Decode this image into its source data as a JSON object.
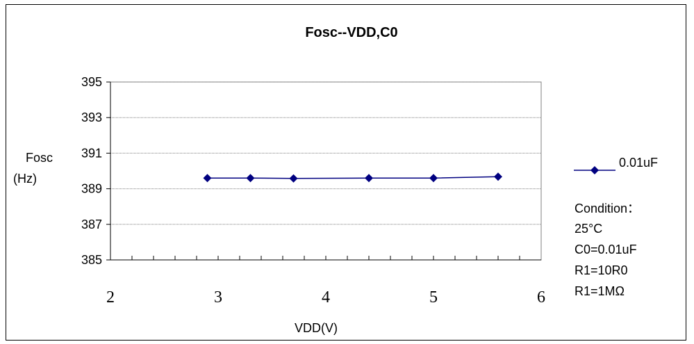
{
  "chart_data": {
    "type": "line",
    "title": "Fosc--VDD,C0",
    "xlabel": "VDD(V)",
    "ylabel_line1": "Fosc",
    "ylabel_line2": "(Hz)",
    "xlim": [
      2,
      6
    ],
    "ylim": [
      385,
      395
    ],
    "x_ticks": [
      2,
      3,
      4,
      5,
      6
    ],
    "x_minor_step": 0.2,
    "y_ticks": [
      385,
      387,
      389,
      391,
      393,
      395
    ],
    "grid": "horizontal",
    "legend_position": "right",
    "series": [
      {
        "name": "0.01uF",
        "color": "#000080",
        "marker": "diamond",
        "x": [
          2.9,
          3.3,
          3.7,
          4.4,
          5.0,
          5.6
        ],
        "y": [
          389.6,
          389.6,
          389.58,
          389.6,
          389.6,
          389.68
        ]
      }
    ],
    "annotations": {
      "condition_title": "Condition：",
      "lines": [
        "25°C",
        "C0=0.01uF",
        "R1=10R0",
        "R1=1MΩ"
      ]
    }
  }
}
